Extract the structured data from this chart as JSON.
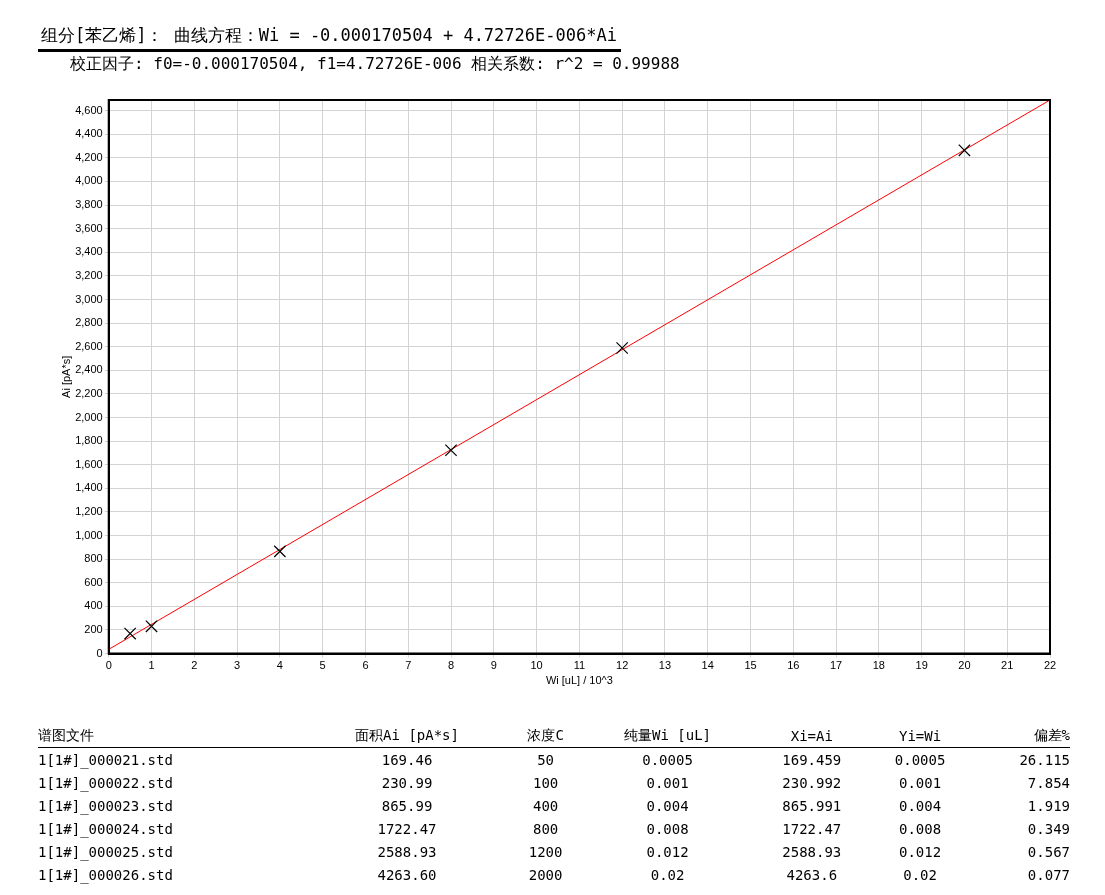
{
  "chart_data": {
    "type": "scatter",
    "title": "组分[苯乙烯]：  曲线方程：Wi = -0.000170504 + 4.72726E-006*Ai",
    "subtitle": "校正因子: f0=-0.000170504, f1=4.72726E-006  相关系数: r^2 = 0.99988",
    "xlabel": "Wi [uL] / 10^3",
    "ylabel": "Ai [pA*s]",
    "xlim": [
      0,
      22
    ],
    "xticks": [
      0,
      1,
      2,
      3,
      4,
      5,
      6,
      7,
      8,
      9,
      10,
      11,
      12,
      13,
      14,
      15,
      16,
      17,
      18,
      19,
      20,
      21,
      22
    ],
    "ylim": [
      0,
      4690
    ],
    "yticks": [
      0,
      200,
      400,
      600,
      800,
      {
        "value": 1000,
        "label": "1,000"
      },
      {
        "value": 1200,
        "label": "1,200"
      },
      {
        "value": 1400,
        "label": "1,400"
      },
      {
        "value": 1600,
        "label": "1,600"
      },
      {
        "value": 1800,
        "label": "1,800"
      },
      {
        "value": 2000,
        "label": "2,000"
      },
      {
        "value": 2200,
        "label": "2,200"
      },
      {
        "value": 2400,
        "label": "2,400"
      },
      {
        "value": 2600,
        "label": "2,600"
      },
      {
        "value": 2800,
        "label": "2,800"
      },
      {
        "value": 3000,
        "label": "3,000"
      },
      {
        "value": 3200,
        "label": "3,200"
      },
      {
        "value": 3400,
        "label": "3,400"
      },
      {
        "value": 3600,
        "label": "3,600"
      },
      {
        "value": 3800,
        "label": "3,800"
      },
      {
        "value": 4000,
        "label": "4,000"
      },
      {
        "value": 4200,
        "label": "4,200"
      },
      {
        "value": 4400,
        "label": "4,400"
      },
      {
        "value": 4600,
        "label": "4,600"
      }
    ],
    "grid": true,
    "legend": false,
    "series": [
      {
        "marker": "cross",
        "color": "#000000",
        "x": [
          0.5,
          1,
          4,
          8,
          12,
          20
        ],
        "values": [
          169.46,
          230.99,
          865.99,
          1722.47,
          2588.93,
          4263.6
        ]
      },
      {
        "type": "line",
        "marker": "none",
        "color": "#ff0000",
        "x": [
          0,
          22
        ],
        "values": [
          36,
          4690
        ]
      }
    ],
    "annotations": [
      "谱图文件",
      "面积Ai [pA*s]",
      "浓度C",
      "纯量Wi [uL]",
      "Xi=Ai",
      "Yi=Wi",
      "偏差%",
      "1[1#]_000021.std",
      "169.46",
      "50",
      "0.0005",
      "169.459",
      "0.0005",
      "26.115",
      "1[1#]_000022.std",
      "230.99",
      "100",
      "0.001",
      "230.992",
      "0.001",
      "7.854",
      "1[1#]_000023.std",
      "865.99",
      "400",
      "0.004",
      "865.991",
      "0.004",
      "1.919",
      "1[1#]_000024.std",
      "1722.47",
      "800",
      "0.008",
      "1722.47",
      "0.008",
      "0.349",
      "1[1#]_000025.std",
      "2588.93",
      "1200",
      "0.012",
      "2588.93",
      "0.012",
      "0.567",
      "1[1#]_000026.std",
      "4263.60",
      "2000",
      "0.02",
      "4263.6",
      "0.02",
      "0.077"
    ]
  }
}
